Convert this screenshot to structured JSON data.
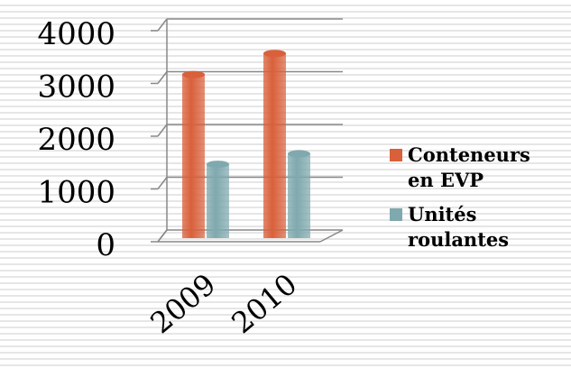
{
  "chart_data": {
    "type": "bar3d",
    "categories": [
      "2009",
      "2010"
    ],
    "series": [
      {
        "name": "Conteneurs en EVP",
        "color": "#d9603b",
        "values": [
          3100,
          3500
        ]
      },
      {
        "name": "Unités roulantes",
        "color": "#7fa9ae",
        "values": [
          1400,
          1600
        ]
      }
    ],
    "ylim": [
      0,
      4000
    ],
    "yticks": [
      0,
      1000,
      2000,
      3000,
      4000
    ],
    "grid": true,
    "legend": "right"
  }
}
